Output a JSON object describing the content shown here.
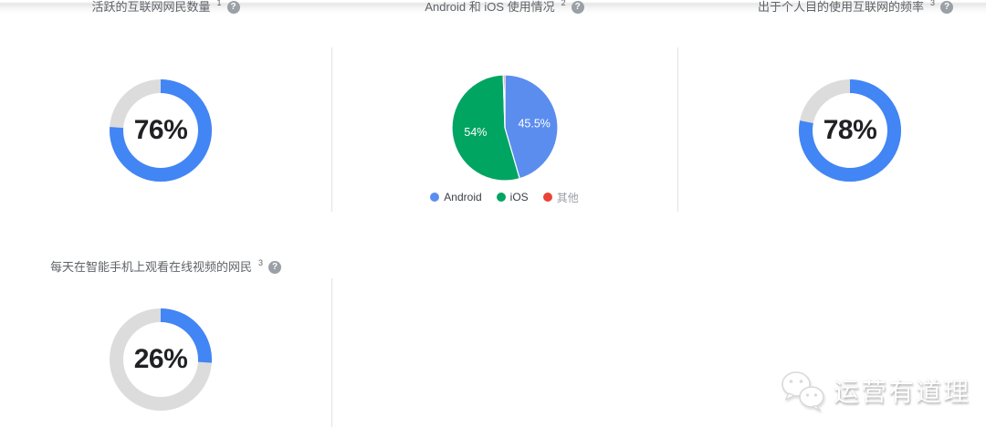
{
  "colors": {
    "donut_fill": "#4285F4",
    "donut_track": "#DCDCDC",
    "pie_blue": "#5B8DEF",
    "pie_green": "#00A562",
    "pie_red": "#EA4335",
    "title_gray": "#5F6368",
    "value_dark": "#202124"
  },
  "icons": {
    "help": "?"
  },
  "cards": [
    {
      "key": "active-internet-users",
      "type": "donut",
      "title": "活跃的互联网网民数量",
      "sup": "1",
      "value": 76,
      "label": "76%"
    },
    {
      "key": "os-usage",
      "type": "pie",
      "title": "Android 和 iOS 使用情况",
      "sup": "2",
      "slices": [
        {
          "label": "Android",
          "value": 45.5,
          "display": "45.5%",
          "color": "#5B8DEF"
        },
        {
          "label": "iOS",
          "value": 54,
          "display": "54%",
          "color": "#00A562"
        },
        {
          "label": "其他",
          "value": 0.5,
          "display": "",
          "color": "#EA4335"
        }
      ]
    },
    {
      "key": "personal-internet-frequency",
      "type": "donut",
      "title": "出于个人目的使用互联网的频率",
      "sup": "3",
      "value": 78,
      "label": "78%"
    },
    {
      "key": "daily-mobile-video-viewers",
      "type": "donut",
      "title": "每天在智能手机上观看在线视频的网民",
      "sup": "3",
      "value": 26,
      "label": "26%"
    }
  ],
  "legend": [
    {
      "label": "Android",
      "color": "#5B8DEF",
      "muted": false
    },
    {
      "label": "iOS",
      "color": "#00A562",
      "muted": false
    },
    {
      "label": "其他",
      "color": "#EA4335",
      "muted": true
    }
  ],
  "watermark": {
    "text": "运营有道理",
    "icon": "wechat-icon"
  },
  "chart_data": [
    {
      "type": "donut",
      "title": "活跃的互联网网民数量 1",
      "value": 76,
      "max": 100,
      "display": "76%",
      "fill_color": "#4285F4",
      "track_color": "#DCDCDC",
      "start": "top",
      "direction": "clockwise"
    },
    {
      "type": "pie",
      "title": "Android 和 iOS 使用情况 2",
      "categories": [
        "Android",
        "iOS",
        "其他"
      ],
      "values": [
        45.5,
        54,
        0.5
      ],
      "colors": [
        "#5B8DEF",
        "#00A562",
        "#EA4335"
      ],
      "unit": "%",
      "data_labels": [
        "45.5%",
        "54%",
        ""
      ],
      "legend_position": "bottom",
      "start": "top",
      "direction": "clockwise"
    },
    {
      "type": "donut",
      "title": "出于个人目的使用互联网的频率 3",
      "value": 78,
      "max": 100,
      "display": "78%",
      "fill_color": "#4285F4",
      "track_color": "#DCDCDC",
      "start": "top",
      "direction": "clockwise"
    },
    {
      "type": "donut",
      "title": "每天在智能手机上观看在线视频的网民 3",
      "value": 26,
      "max": 100,
      "display": "26%",
      "fill_color": "#4285F4",
      "track_color": "#DCDCDC",
      "start": "top",
      "direction": "clockwise"
    }
  ]
}
